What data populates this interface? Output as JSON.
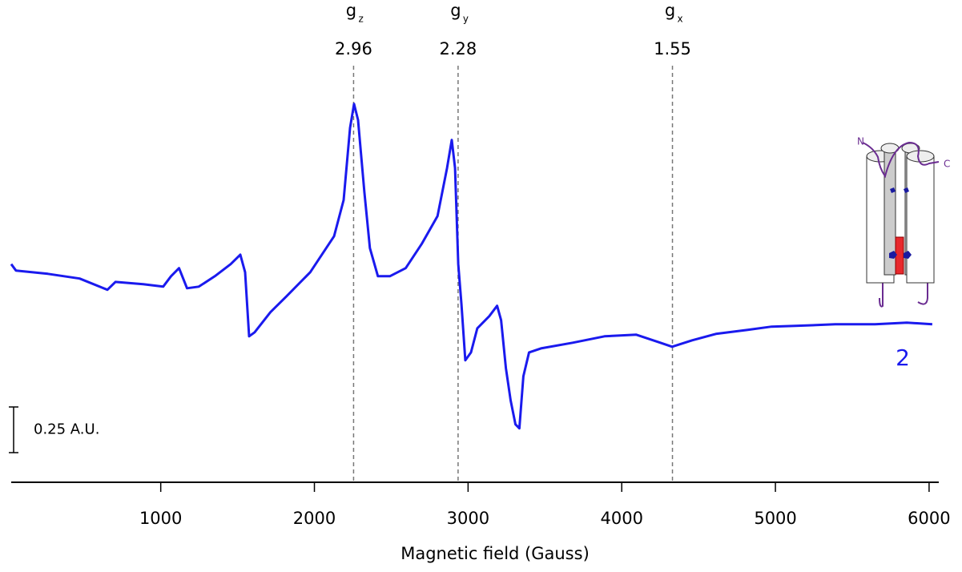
{
  "chart_data": {
    "type": "line",
    "x_label": "Magnetic field (Gauss)",
    "xlim": [
      27,
      6063
    ],
    "xticks": [
      1000,
      2000,
      3000,
      4000,
      5000,
      6000
    ],
    "ylim": [
      -1.15,
      1.49
    ],
    "x": [
      27,
      58,
      265,
      472,
      653,
      705,
      886,
      1016,
      1067,
      1119,
      1171,
      1248,
      1352,
      1455,
      1518,
      1549,
      1575,
      1611,
      1714,
      1818,
      1973,
      2128,
      2190,
      2232,
      2258,
      2284,
      2325,
      2361,
      2413,
      2491,
      2594,
      2698,
      2801,
      2863,
      2894,
      2915,
      2936,
      2957,
      2982,
      3019,
      3060,
      3138,
      3189,
      3215,
      3246,
      3277,
      3308,
      3334,
      3360,
      3397,
      3474,
      3681,
      3888,
      4095,
      4251,
      4328,
      4458,
      4613,
      4820,
      4975,
      5130,
      5389,
      5648,
      5855,
      6021
    ],
    "series": [
      {
        "name": "2",
        "color": "#1a1aee",
        "values": [
          0.044,
          0.009,
          -0.009,
          -0.035,
          -0.096,
          -0.053,
          -0.066,
          -0.079,
          -0.022,
          0.022,
          -0.088,
          -0.079,
          -0.022,
          0.044,
          0.096,
          0,
          -0.351,
          -0.329,
          -0.219,
          -0.132,
          0,
          0.197,
          0.395,
          0.789,
          0.921,
          0.833,
          0.439,
          0.132,
          -0.022,
          -0.022,
          0.022,
          0.154,
          0.307,
          0.57,
          0.724,
          0.57,
          0.044,
          -0.175,
          -0.482,
          -0.439,
          -0.307,
          -0.241,
          -0.184,
          -0.263,
          -0.526,
          -0.702,
          -0.833,
          -0.855,
          -0.57,
          -0.439,
          -0.417,
          -0.386,
          -0.351,
          -0.342,
          -0.386,
          -0.408,
          -0.373,
          -0.338,
          -0.316,
          -0.298,
          -0.294,
          -0.285,
          -0.285,
          -0.276,
          -0.285
        ]
      }
    ],
    "markers": [
      {
        "symbol": "g",
        "sub": "z",
        "value": 2.96,
        "field": 2255
      },
      {
        "symbol": "g",
        "sub": "y",
        "value": 2.28,
        "field": 2935
      },
      {
        "symbol": "g",
        "sub": "x",
        "value": 1.55,
        "field": 4330
      }
    ],
    "scale_bar": {
      "value": 0.25,
      "label": "0.25 A.U."
    },
    "inset": {
      "labels": [
        "N",
        "C"
      ]
    }
  }
}
